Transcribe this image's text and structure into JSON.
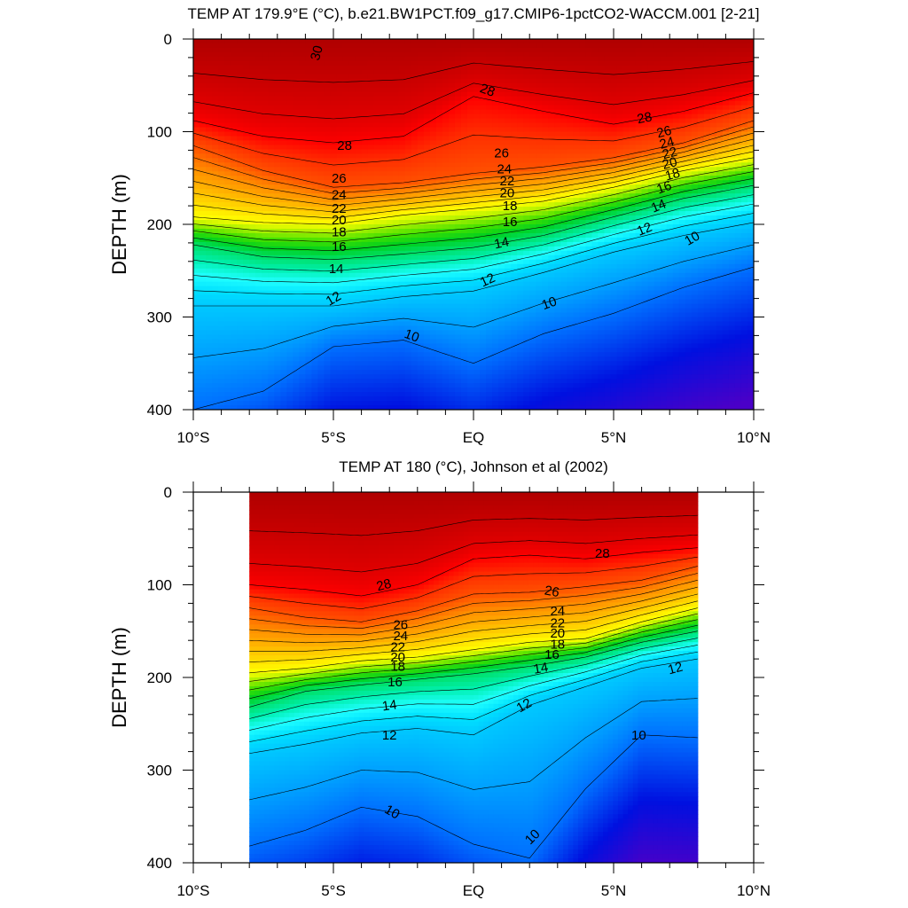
{
  "chart_data": [
    {
      "type": "heatmap",
      "title": "TEMP AT 179.9°E (°C), b.e21.BW1PCT.f09_g17.CMIP6-1pctCO2-WACCM.001 [2-21]",
      "xlabel": "",
      "ylabel": "DEPTH (m)",
      "xlim": [
        -10,
        10
      ],
      "ylim": [
        400,
        0
      ],
      "x_ticks": [
        {
          "value": -10,
          "label": "10°S"
        },
        {
          "value": -5,
          "label": "5°S"
        },
        {
          "value": 0,
          "label": "EQ"
        },
        {
          "value": 5,
          "label": "5°N"
        },
        {
          "value": 10,
          "label": "10°N"
        }
      ],
      "y_ticks": [
        {
          "value": 0,
          "label": "0"
        },
        {
          "value": 100,
          "label": "100"
        },
        {
          "value": 200,
          "label": "200"
        },
        {
          "value": 300,
          "label": "300"
        },
        {
          "value": 400,
          "label": "400"
        }
      ],
      "data_lon_range": [
        -10,
        10
      ],
      "isotherm_depths_m": {
        "lat": [
          -10,
          -7.5,
          -5,
          -2.5,
          0,
          2.5,
          5,
          7.5,
          10
        ],
        "t28": [
          88,
          105,
          112,
          105,
          62,
          78,
          92,
          78,
          58
        ],
        "t26": [
          115,
          142,
          160,
          155,
          145,
          138,
          128,
          112,
          88
        ],
        "t20": [
          192,
          198,
          200,
          190,
          183,
          175,
          160,
          142,
          128
        ],
        "t16": [
          222,
          235,
          238,
          232,
          225,
          212,
          192,
          172,
          158
        ],
        "t12": [
          288,
          288,
          288,
          278,
          272,
          252,
          230,
          212,
          198
        ],
        "t10": [
          400,
          380,
          332,
          325,
          350,
          318,
          296,
          268,
          246
        ]
      },
      "contour_labels": [
        {
          "text": "30",
          "lat": -5.6,
          "depth": 15,
          "rotate": -75
        },
        {
          "text": "28",
          "lat": 0.5,
          "depth": 55,
          "rotate": 20
        },
        {
          "text": "28",
          "lat": 6.1,
          "depth": 85,
          "rotate": -12
        },
        {
          "text": "28",
          "lat": -4.6,
          "depth": 115,
          "rotate": 0
        },
        {
          "text": "26",
          "lat": -4.8,
          "depth": 150,
          "rotate": 0
        },
        {
          "text": "24",
          "lat": -4.8,
          "depth": 168,
          "rotate": 0
        },
        {
          "text": "22",
          "lat": -4.8,
          "depth": 183,
          "rotate": 0
        },
        {
          "text": "20",
          "lat": -4.8,
          "depth": 195,
          "rotate": 0
        },
        {
          "text": "18",
          "lat": -4.8,
          "depth": 208,
          "rotate": 0
        },
        {
          "text": "16",
          "lat": -4.8,
          "depth": 224,
          "rotate": 0
        },
        {
          "text": "14",
          "lat": -4.9,
          "depth": 248,
          "rotate": 0
        },
        {
          "text": "12",
          "lat": -5.0,
          "depth": 280,
          "rotate": -30
        },
        {
          "text": "10",
          "lat": -2.2,
          "depth": 320,
          "rotate": 20
        },
        {
          "text": "26",
          "lat": 1.0,
          "depth": 123,
          "rotate": 0
        },
        {
          "text": "24",
          "lat": 1.1,
          "depth": 140,
          "rotate": 0
        },
        {
          "text": "22",
          "lat": 1.2,
          "depth": 153,
          "rotate": 0
        },
        {
          "text": "20",
          "lat": 1.2,
          "depth": 166,
          "rotate": 0
        },
        {
          "text": "18",
          "lat": 1.3,
          "depth": 180,
          "rotate": 0
        },
        {
          "text": "16",
          "lat": 1.3,
          "depth": 197,
          "rotate": 0
        },
        {
          "text": "14",
          "lat": 1.0,
          "depth": 220,
          "rotate": -12
        },
        {
          "text": "12",
          "lat": 0.5,
          "depth": 260,
          "rotate": -25
        },
        {
          "text": "10",
          "lat": 2.7,
          "depth": 285,
          "rotate": -20
        },
        {
          "text": "26",
          "lat": 6.8,
          "depth": 100,
          "rotate": -15
        },
        {
          "text": "24",
          "lat": 6.9,
          "depth": 112,
          "rotate": -15
        },
        {
          "text": "22",
          "lat": 7.0,
          "depth": 123,
          "rotate": -15
        },
        {
          "text": "20",
          "lat": 7.0,
          "depth": 134,
          "rotate": -15
        },
        {
          "text": "18",
          "lat": 7.1,
          "depth": 146,
          "rotate": -15
        },
        {
          "text": "16",
          "lat": 6.8,
          "depth": 160,
          "rotate": -20
        },
        {
          "text": "14",
          "lat": 6.6,
          "depth": 180,
          "rotate": -22
        },
        {
          "text": "12",
          "lat": 6.1,
          "depth": 205,
          "rotate": -22
        },
        {
          "text": "10",
          "lat": 7.8,
          "depth": 215,
          "rotate": -30
        }
      ]
    },
    {
      "type": "heatmap",
      "title": "TEMP AT 180 (°C), Johnson et al (2002)",
      "xlabel": "",
      "ylabel": "DEPTH (m)",
      "xlim": [
        -10,
        10
      ],
      "ylim": [
        400,
        0
      ],
      "x_ticks": [
        {
          "value": -10,
          "label": "10°S"
        },
        {
          "value": -5,
          "label": "5°S"
        },
        {
          "value": 0,
          "label": "EQ"
        },
        {
          "value": 5,
          "label": "5°N"
        },
        {
          "value": 10,
          "label": "10°N"
        }
      ],
      "y_ticks": [
        {
          "value": 0,
          "label": "0"
        },
        {
          "value": 100,
          "label": "100"
        },
        {
          "value": 200,
          "label": "200"
        },
        {
          "value": 300,
          "label": "300"
        },
        {
          "value": 400,
          "label": "400"
        }
      ],
      "data_lon_range": [
        -8,
        8
      ],
      "isotherm_depths_m": {
        "lat": [
          -8,
          -6,
          -4,
          -2,
          0,
          2,
          4,
          6,
          8
        ],
        "t28": [
          100,
          105,
          112,
          100,
          72,
          68,
          72,
          65,
          60
        ],
        "t26": [
          125,
          135,
          140,
          128,
          110,
          108,
          102,
          95,
          80
        ],
        "t20": [
          195,
          190,
          182,
          178,
          170,
          162,
          158,
          140,
          125
        ],
        "t16": [
          232,
          215,
          208,
          202,
          196,
          188,
          178,
          162,
          150
        ],
        "t12": [
          282,
          272,
          260,
          255,
          262,
          230,
          210,
          190,
          180
        ],
        "t10": [
          382,
          365,
          340,
          350,
          380,
          395,
          320,
          262,
          265
        ]
      },
      "contour_labels": [
        {
          "text": "28",
          "lat": -3.2,
          "depth": 100,
          "rotate": -15
        },
        {
          "text": "28",
          "lat": 4.6,
          "depth": 66,
          "rotate": 0
        },
        {
          "text": "26",
          "lat": -2.6,
          "depth": 143,
          "rotate": 0
        },
        {
          "text": "24",
          "lat": -2.6,
          "depth": 155,
          "rotate": 0
        },
        {
          "text": "22",
          "lat": -2.7,
          "depth": 167,
          "rotate": 0
        },
        {
          "text": "20",
          "lat": -2.7,
          "depth": 178,
          "rotate": 0
        },
        {
          "text": "18",
          "lat": -2.7,
          "depth": 188,
          "rotate": 0
        },
        {
          "text": "16",
          "lat": -2.8,
          "depth": 205,
          "rotate": 0
        },
        {
          "text": "14",
          "lat": -3.0,
          "depth": 230,
          "rotate": -8
        },
        {
          "text": "12",
          "lat": -3.0,
          "depth": 262,
          "rotate": 0
        },
        {
          "text": "10",
          "lat": -2.9,
          "depth": 345,
          "rotate": 30
        },
        {
          "text": "26",
          "lat": 2.8,
          "depth": 107,
          "rotate": 10
        },
        {
          "text": "24",
          "lat": 3.0,
          "depth": 128,
          "rotate": 0
        },
        {
          "text": "22",
          "lat": 3.0,
          "depth": 141,
          "rotate": 0
        },
        {
          "text": "20",
          "lat": 3.0,
          "depth": 152,
          "rotate": 0
        },
        {
          "text": "18",
          "lat": 3.0,
          "depth": 164,
          "rotate": 0
        },
        {
          "text": "16",
          "lat": 2.8,
          "depth": 175,
          "rotate": 0
        },
        {
          "text": "14",
          "lat": 2.4,
          "depth": 190,
          "rotate": -10
        },
        {
          "text": "12",
          "lat": 1.8,
          "depth": 230,
          "rotate": -30
        },
        {
          "text": "12",
          "lat": 7.2,
          "depth": 190,
          "rotate": -15
        },
        {
          "text": "10",
          "lat": 5.9,
          "depth": 262,
          "rotate": 0
        },
        {
          "text": "10",
          "lat": 2.1,
          "depth": 372,
          "rotate": -45
        }
      ]
    }
  ]
}
